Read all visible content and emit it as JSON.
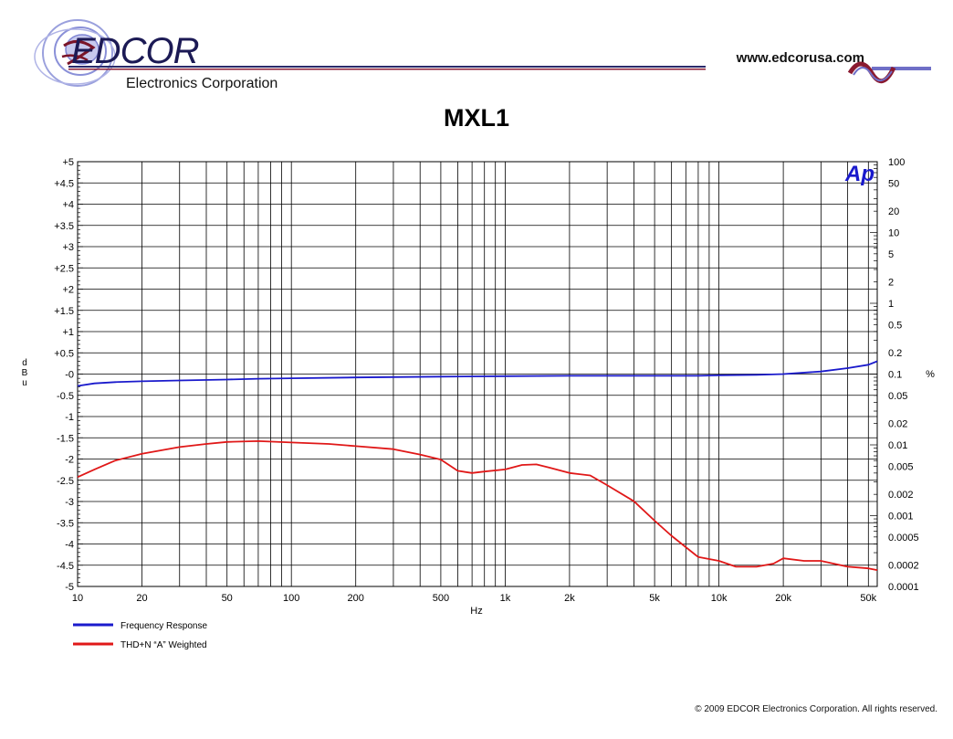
{
  "header": {
    "logo_text": "EDCOR",
    "company": "Electronics Corporation",
    "website": "www.edcorusa.com"
  },
  "footer": {
    "copyright": "© 2009 EDCOR Electronics Corporation. All rights reserved."
  },
  "chart_data": {
    "type": "line",
    "title": "MXL1",
    "xlabel": "Hz",
    "ylabel": "d B u",
    "y2label": "%",
    "xscale": "log",
    "xlim": [
      10,
      55000
    ],
    "ylim": [
      -5,
      5
    ],
    "y2scale": "log",
    "y2lim": [
      0.0001,
      100
    ],
    "grid": true,
    "legend_position": "bottom-left",
    "watermark": "Ap",
    "x_ticks": [
      10,
      20,
      50,
      100,
      200,
      500,
      1000,
      2000,
      5000,
      10000,
      20000,
      50000
    ],
    "x_tick_labels": [
      "10",
      "20",
      "50",
      "100",
      "200",
      "500",
      "1k",
      "2k",
      "5k",
      "10k",
      "20k",
      "50k"
    ],
    "y_ticks": [
      5,
      4.5,
      4,
      3.5,
      3,
      2.5,
      2,
      1.5,
      1,
      0.5,
      0,
      -0.5,
      -1,
      -1.5,
      -2,
      -2.5,
      -3,
      -3.5,
      -4,
      -4.5,
      -5
    ],
    "y_tick_labels": [
      "+5",
      "+4.5",
      "+4",
      "+3.5",
      "+3",
      "+2.5",
      "+2",
      "+1.5",
      "+1",
      "+0.5",
      "-0",
      "-0.5",
      "-1",
      "-1.5",
      "-2",
      "-2.5",
      "-3",
      "-3.5",
      "-4",
      "-4.5",
      "-5"
    ],
    "y2_ticks": [
      100,
      50,
      20,
      10,
      5,
      2,
      1,
      0.5,
      0.2,
      0.1,
      0.05,
      0.02,
      0.01,
      0.005,
      0.002,
      0.001,
      0.0005,
      0.0002,
      0.0001
    ],
    "y2_tick_labels": [
      "100",
      "50",
      "20",
      "10",
      "5",
      "2",
      "1",
      "0.5",
      "0.2",
      "0.1",
      "0.05",
      "0.02",
      "0.01",
      "0.005",
      "0.002",
      "0.001",
      "0.0005",
      "0.0002",
      "0.0001"
    ],
    "series": [
      {
        "name": "Frequency Response",
        "color": "#1a1acc",
        "axis": "left",
        "x": [
          10,
          12,
          15,
          20,
          30,
          50,
          70,
          100,
          200,
          500,
          1000,
          2000,
          5000,
          8000,
          10000,
          15000,
          20000,
          30000,
          40000,
          50000,
          55000
        ],
        "y": [
          -0.28,
          -0.22,
          -0.19,
          -0.17,
          -0.15,
          -0.13,
          -0.11,
          -0.1,
          -0.08,
          -0.06,
          -0.05,
          -0.04,
          -0.04,
          -0.04,
          -0.03,
          -0.02,
          0.0,
          0.06,
          0.14,
          0.22,
          0.3
        ]
      },
      {
        "name": "THD+N “A” Weighted",
        "color": "#e01818",
        "axis": "right",
        "x": [
          10,
          12,
          15,
          20,
          30,
          40,
          50,
          70,
          100,
          150,
          200,
          300,
          400,
          500,
          600,
          700,
          800,
          1000,
          1200,
          1400,
          1600,
          2000,
          2500,
          3000,
          4000,
          5000,
          6000,
          8000,
          10000,
          12000,
          15000,
          18000,
          20000,
          25000,
          30000,
          40000,
          50000,
          55000
        ],
        "y": [
          0.0035,
          0.0045,
          0.006,
          0.0075,
          0.0093,
          0.0103,
          0.011,
          0.0113,
          0.0108,
          0.0103,
          0.0096,
          0.0087,
          0.0073,
          0.0062,
          0.0043,
          0.004,
          0.0042,
          0.0045,
          0.0052,
          0.0053,
          0.0048,
          0.004,
          0.0037,
          0.0027,
          0.0016,
          0.00085,
          0.00052,
          0.00026,
          0.00023,
          0.00019,
          0.00019,
          0.00021,
          0.00025,
          0.00023,
          0.00023,
          0.00019,
          0.00018,
          0.00017
        ]
      }
    ]
  }
}
